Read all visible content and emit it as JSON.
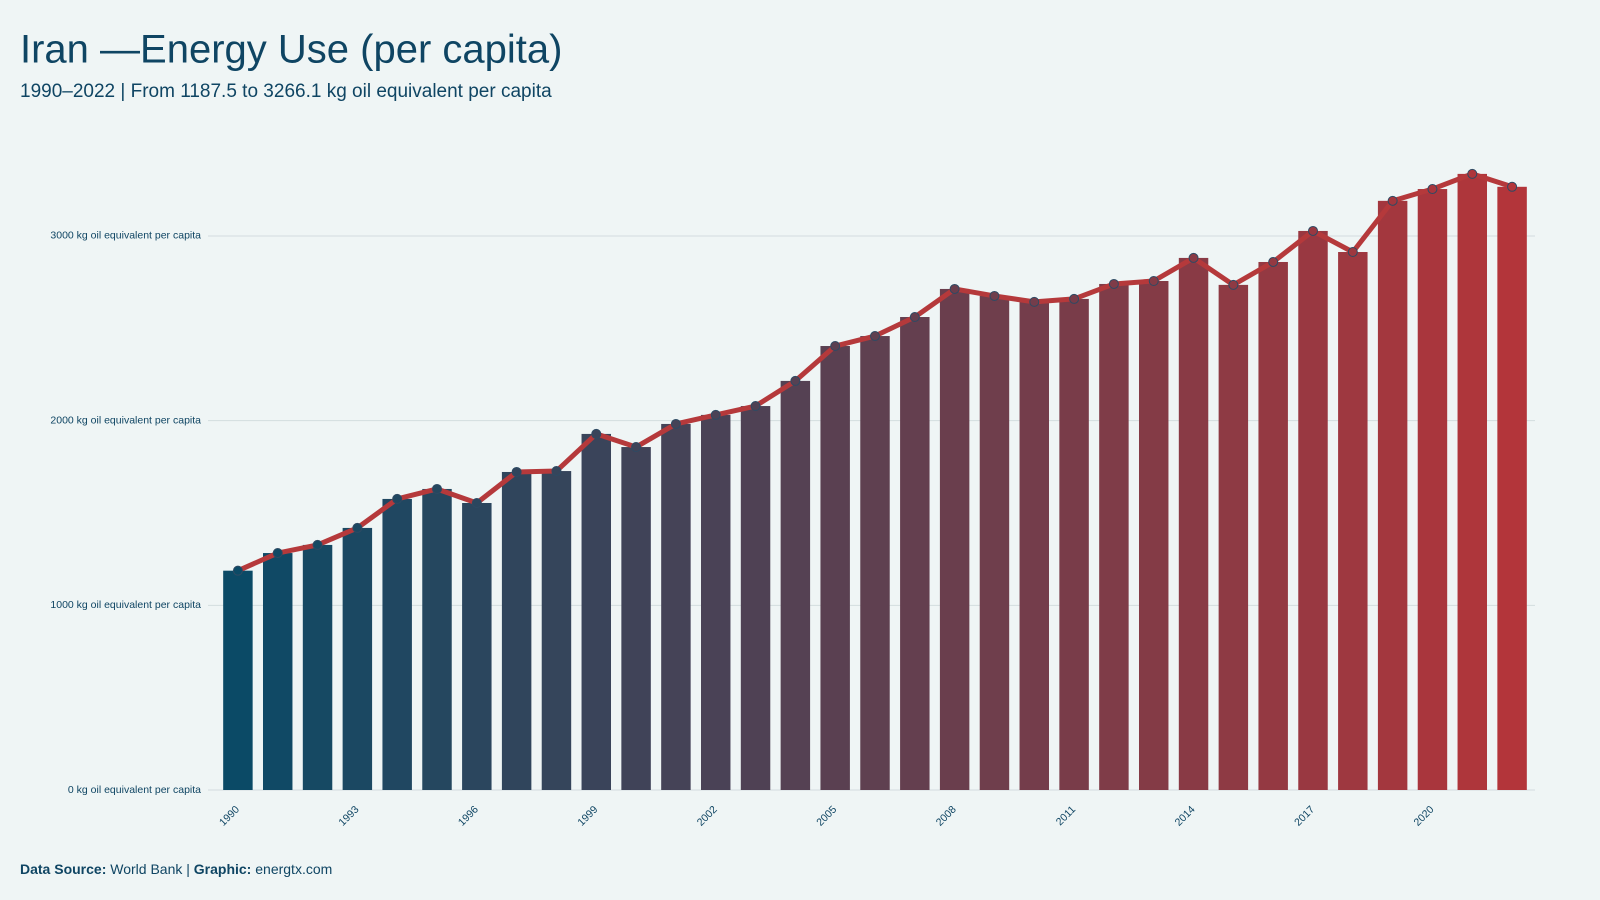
{
  "chart_data": {
    "type": "bar-line",
    "title": "Iran —Energy Use (per capita)",
    "subtitle": "1990–2022 | From 1187.5  to 3266.1  kg oil equivalent per capita",
    "categories": [
      "1990",
      null,
      null,
      "1993",
      null,
      null,
      "1996",
      null,
      null,
      "1999",
      null,
      null,
      "2002",
      null,
      null,
      "2005",
      null,
      null,
      "2008",
      null,
      null,
      "2011",
      null,
      null,
      "2014",
      null,
      null,
      "2017",
      null,
      null,
      "2020",
      null,
      null
    ],
    "values": [
      1187.5,
      1283,
      1327,
      1419,
      1576,
      1630,
      1554,
      1722,
      1727,
      1928,
      1857,
      1982,
      2031,
      2079,
      2215,
      2404,
      2458,
      2561,
      2713,
      2675,
      2643,
      2659,
      2740,
      2756,
      2881,
      2735,
      2859,
      3027,
      2913,
      3190,
      3254,
      3336,
      3266.1
    ],
    "bar_colors": [
      "#0b4a66",
      "#b3353a"
    ],
    "line_color": "#b5393b",
    "ylim": [
      0,
      3500
    ],
    "yticks": [
      {
        "value": 0,
        "label": "0 kg oil equivalent per capita"
      },
      {
        "value": 1000,
        "label": "1000 kg oil equivalent per capita"
      },
      {
        "value": 2000,
        "label": "2000 kg oil equivalent per capita"
      },
      {
        "value": 3000,
        "label": "3000 kg oil equivalent per capita"
      }
    ],
    "grid": true,
    "source_label": "Data  Source:",
    "source": "World Bank",
    "graphic_label": "Graphic:",
    "graphic": "energtx.com"
  }
}
